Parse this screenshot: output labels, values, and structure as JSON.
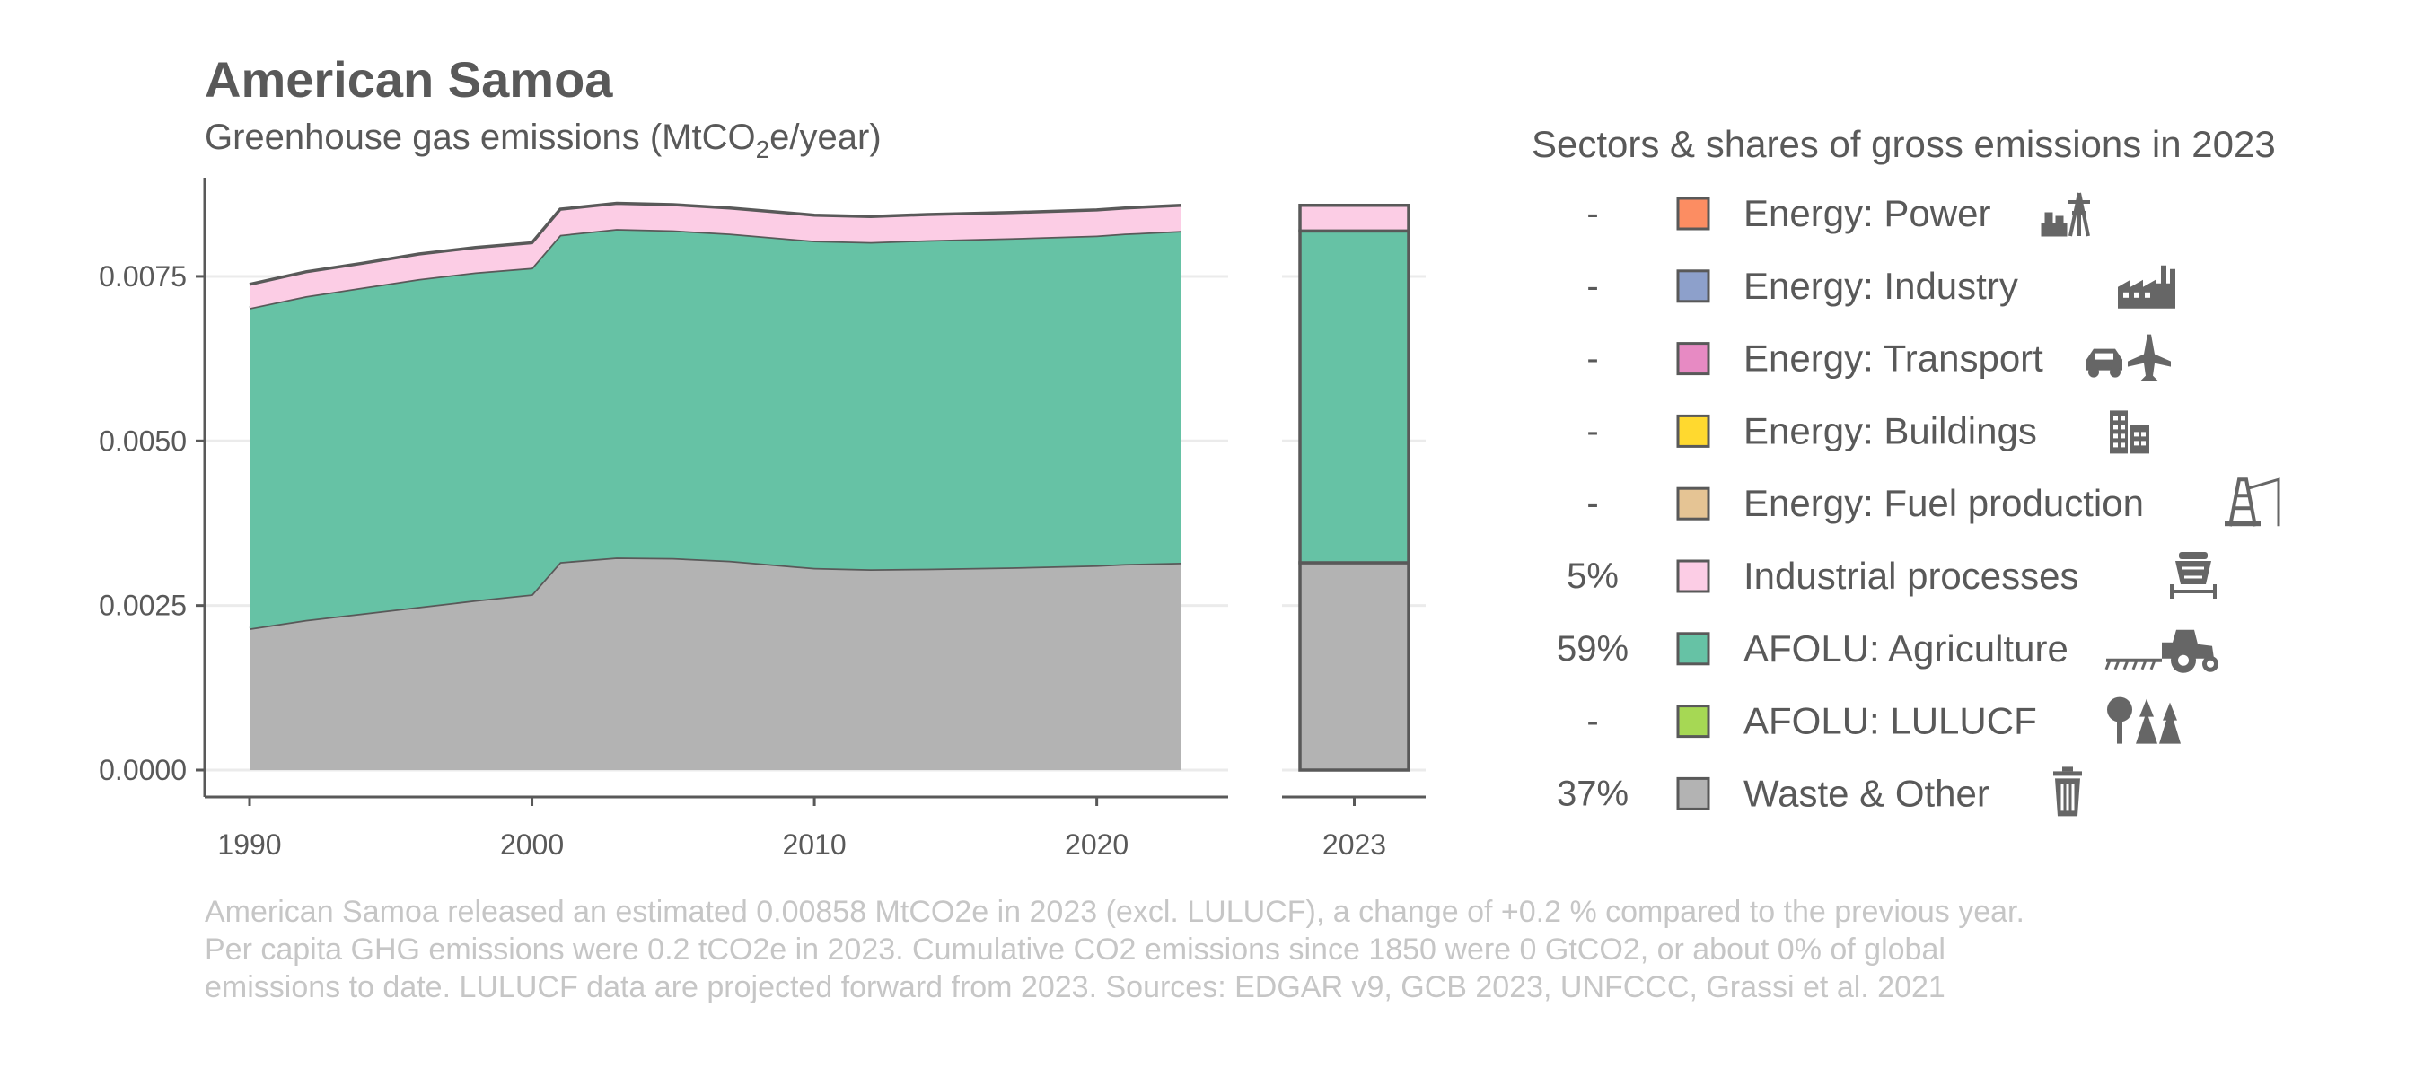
{
  "chart_data": {
    "type": "area",
    "title": "American Samoa",
    "subtitle_main": "Greenhouse gas emissions (MtCO",
    "subtitle_sub": "2",
    "subtitle_tail": "e/year)",
    "x": [
      1990,
      1992,
      1994,
      1996,
      1998,
      2000,
      2001,
      2003,
      2005,
      2007,
      2010,
      2012,
      2014,
      2017,
      2020,
      2021,
      2023
    ],
    "series": [
      {
        "name": "Waste & Other",
        "color": "#b3b3b3",
        "values": [
          0.00215,
          0.00228,
          0.00238,
          0.00248,
          0.00258,
          0.00267,
          0.00316,
          0.00323,
          0.00322,
          0.00318,
          0.00307,
          0.00305,
          0.00306,
          0.00308,
          0.00311,
          0.00313,
          0.00315
        ]
      },
      {
        "name": "AFOLU: Agriculture",
        "color": "#66c2a5",
        "values": [
          0.00487,
          0.00492,
          0.00495,
          0.00498,
          0.00498,
          0.00496,
          0.00497,
          0.00499,
          0.00498,
          0.00497,
          0.00497,
          0.00497,
          0.00499,
          0.005,
          0.00501,
          0.00502,
          0.00504
        ]
      },
      {
        "name": "Industrial processes",
        "color": "#fccde5",
        "values": [
          0.00036,
          0.00037,
          0.00037,
          0.00038,
          0.00038,
          0.00038,
          0.00039,
          0.00039,
          0.00039,
          0.00039,
          0.00039,
          0.00039,
          0.00039,
          0.00039,
          0.00039,
          0.00039,
          0.00039
        ]
      }
    ],
    "bar_year": "2023",
    "bar_values": [
      0.00315,
      0.00504,
      0.00039
    ],
    "x_ticks": [
      "1990",
      "2000",
      "2010",
      "2020"
    ],
    "x_tick_values": [
      1990,
      2000,
      2010,
      2020
    ],
    "y_ticks": [
      "0.0000",
      "0.0025",
      "0.0050",
      "0.0075"
    ],
    "y_tick_values": [
      0,
      0.0025,
      0.005,
      0.0075
    ],
    "xlim": [
      1990,
      2023
    ],
    "ylim": [
      0,
      0.0088
    ],
    "grid": true,
    "legend": {
      "title": "Sectors & shares of gross emissions in 2023",
      "placement": "right",
      "items": [
        {
          "share": "-",
          "label": "Energy: Power",
          "color": "#fc8d62",
          "icon": "power-plant-icon"
        },
        {
          "share": "-",
          "label": "Energy: Industry",
          "color": "#8da0cb",
          "icon": "factory-icon"
        },
        {
          "share": "-",
          "label": "Energy: Transport",
          "color": "#e78ac3",
          "icon": "car-plane-icon"
        },
        {
          "share": "-",
          "label": "Energy: Buildings",
          "color": "#ffd92f",
          "icon": "buildings-icon"
        },
        {
          "share": "-",
          "label": "Energy: Fuel production",
          "color": "#e5c494",
          "icon": "oil-rig-icon"
        },
        {
          "share": "5%",
          "label": "Industrial processes",
          "color": "#fccde5",
          "icon": "cement-mixer-icon"
        },
        {
          "share": "59%",
          "label": "AFOLU: Agriculture",
          "color": "#66c2a5",
          "icon": "tractor-icon"
        },
        {
          "share": "-",
          "label": "AFOLU: LULUCF",
          "color": "#a6d854",
          "icon": "trees-icon"
        },
        {
          "share": "37%",
          "label": "Waste & Other",
          "color": "#b3b3b3",
          "icon": "trash-icon"
        }
      ]
    },
    "caption": [
      "American Samoa released an estimated 0.00858 MtCO2e in 2023 (excl. LULUCF), a change of +0.2 % compared to the previous year.",
      "Per capita GHG emissions were 0.2 tCO2e in 2023. Cumulative CO2 emissions since 1850 were 0 GtCO2, or about 0% of global",
      "emissions to date. LULUCF data are projected forward from 2023. Sources: EDGAR v9, GCB 2023, UNFCCC, Grassi et al. 2021"
    ]
  }
}
